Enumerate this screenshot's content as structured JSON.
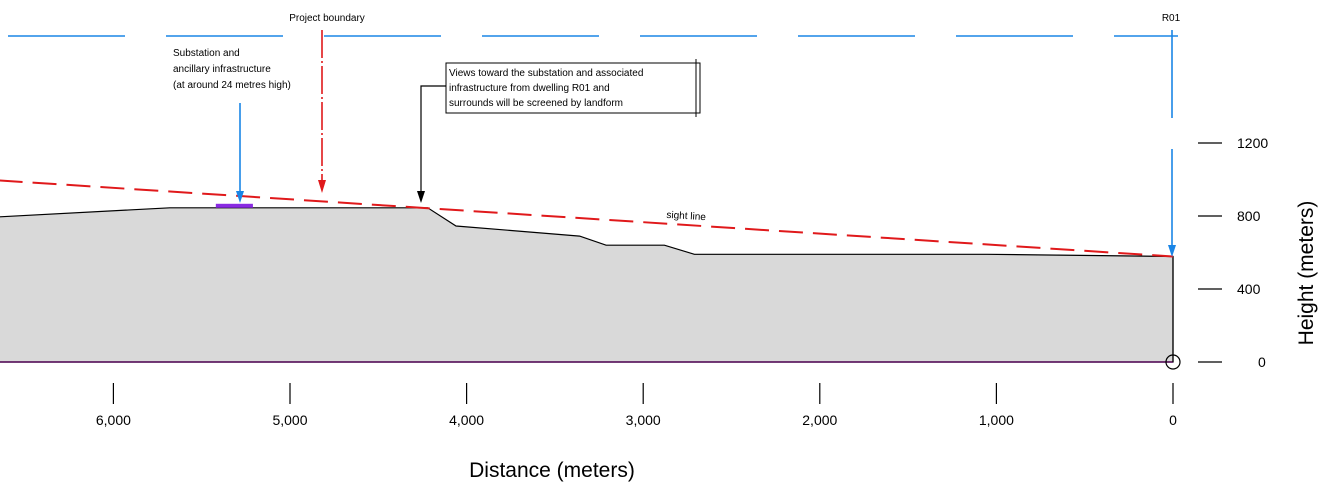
{
  "chart_data": {
    "type": "area",
    "xlabel": "Distance (meters)",
    "ylabel": "Height (meters)",
    "x_reversed": true,
    "xlim": [
      0,
      6650
    ],
    "ylim": [
      0,
      1250
    ],
    "x_ticks": [
      {
        "value": 6000,
        "label": "6,000"
      },
      {
        "value": 5000,
        "label": "5,000"
      },
      {
        "value": 4000,
        "label": "4,000"
      },
      {
        "value": 3000,
        "label": "3,000"
      },
      {
        "value": 2000,
        "label": "2,000"
      },
      {
        "value": 1000,
        "label": "1,000"
      },
      {
        "value": 0,
        "label": "0"
      }
    ],
    "y_ticks": [
      {
        "value": 0,
        "label": "0"
      },
      {
        "value": 400,
        "label": "400"
      },
      {
        "value": 800,
        "label": "800"
      },
      {
        "value": 1200,
        "label": "1200"
      }
    ],
    "terrain": [
      [
        6650,
        795
      ],
      [
        5680,
        845
      ],
      [
        4220,
        845
      ],
      [
        4060,
        745
      ],
      [
        3360,
        690
      ],
      [
        3210,
        640
      ],
      [
        2880,
        640
      ],
      [
        2710,
        590
      ],
      [
        1050,
        590
      ],
      [
        0,
        578
      ]
    ],
    "sight_line": {
      "label": "sight line",
      "from": [
        6650,
        995
      ],
      "to": [
        0,
        578
      ]
    },
    "substation_marker": {
      "from": 5420,
      "to": 5210,
      "height": 845,
      "color": "#8a2be2"
    },
    "observer_point": {
      "x": 0,
      "y": 0
    },
    "baseline_color": "#5c1060",
    "terrain_fill": "#d9d9d9",
    "sight_line_color": "#e0191b",
    "pointer_blue": "#1a85e6"
  },
  "annotations": {
    "project_boundary": "Project boundary",
    "r01": "R01",
    "substation_lines": [
      "Substation and",
      "ancillary infrastructure",
      "(at around 24 metres high)"
    ],
    "views_lines": [
      "Views toward the substation and associated",
      "infrastructure from dwelling R01 and",
      "surrounds will be screened by landform"
    ]
  }
}
